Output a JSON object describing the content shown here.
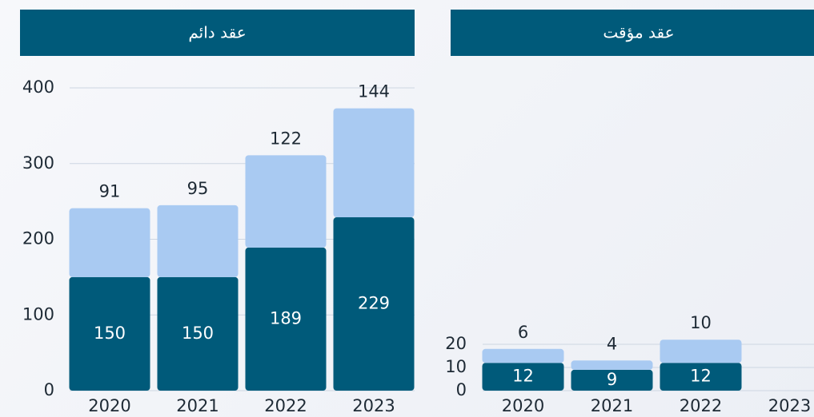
{
  "chart_data": [
    {
      "type": "bar",
      "stacked": true,
      "title": "عقد دائم",
      "categories": [
        "2020",
        "2021",
        "2022",
        "2023"
      ],
      "series": [
        {
          "color": "#005a7a",
          "values": [
            150,
            150,
            189,
            229
          ]
        },
        {
          "color": "#a9caf2",
          "values": [
            91,
            95,
            122,
            144
          ]
        }
      ],
      "ylim": [
        0,
        400
      ],
      "yticks": [
        0,
        100,
        200,
        300,
        400
      ],
      "grid": true
    },
    {
      "type": "bar",
      "stacked": true,
      "title": "عقد مؤقت",
      "categories": [
        "2020",
        "2021",
        "2022",
        "2023"
      ],
      "series": [
        {
          "color": "#005a7a",
          "values": [
            12,
            9,
            12,
            null
          ]
        },
        {
          "color": "#a9caf2",
          "values": [
            6,
            4,
            10,
            null
          ]
        }
      ],
      "ylim": [
        0,
        20
      ],
      "yticks": [
        0,
        10,
        20
      ],
      "grid": true
    }
  ]
}
